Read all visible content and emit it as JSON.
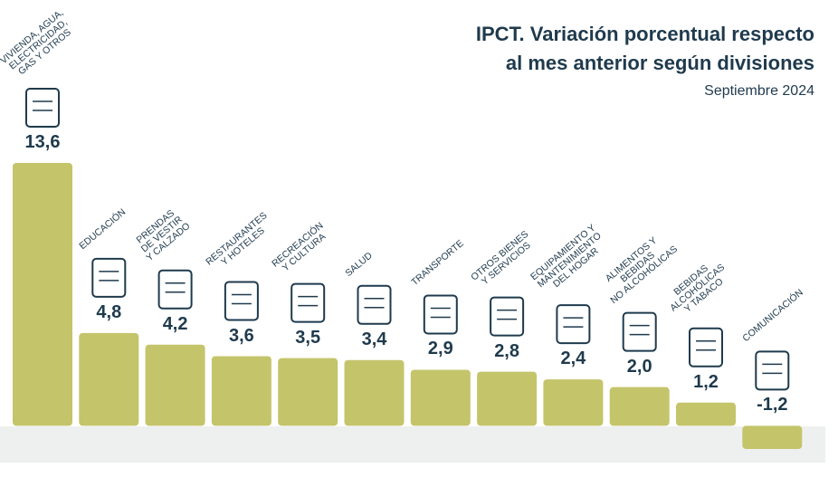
{
  "chart_data": {
    "type": "bar",
    "title": "IPCT. Variación porcentual respecto\nal mes anterior según divisiones",
    "subtitle": "Septiembre 2024",
    "categories": [
      "VIVIENDA, AGUA,\nELECTRICIDAD,\nGAS Y OTROS",
      "EDUCACIÓN",
      "PRENDAS\nDE VESTIR\nY CALZADO",
      "RESTAURANTES\nY HOTELES",
      "RECREACIÓN\nY CULTURA",
      "SALUD",
      "TRANSPORTE",
      "OTROS BIENES\nY SERVICIOS",
      "EQUIPAMIENTO Y\nMANTENIMIENTO\nDEL HOGAR",
      "ALIMENTOS Y\nBEBIDAS\nNO ALCOHÓLICAS",
      "BEBIDAS\nALCOHÓLICAS\nY TABACO",
      "COMUNICACIÓN"
    ],
    "values": [
      13.6,
      4.8,
      4.2,
      3.6,
      3.5,
      3.4,
      2.9,
      2.8,
      2.4,
      2.0,
      1.2,
      -1.2
    ],
    "value_labels": [
      "13,6",
      "4,8",
      "4,2",
      "3,6",
      "3,5",
      "3,4",
      "2,9",
      "2,8",
      "2,4",
      "2,0",
      "1,2",
      "-1,2"
    ],
    "color": "#c4c46b"
  }
}
